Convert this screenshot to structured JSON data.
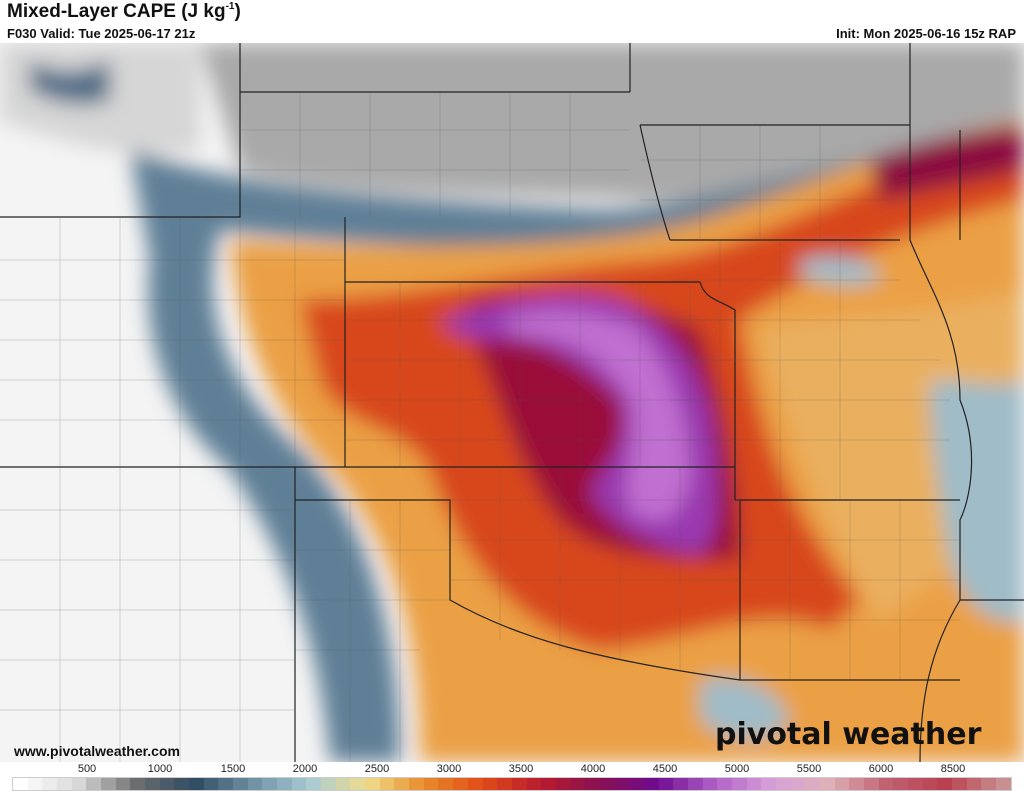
{
  "header": {
    "title": "Mixed-Layer CAPE (J kg",
    "title_sup": "-1",
    "title_close": ")",
    "valid": "F030 Valid: Tue 2025-06-17 21z",
    "init": "Init: Mon 2025-06-16 15z RAP"
  },
  "footer": {
    "url": "www.pivotalweather.com",
    "logo": "pivotal weather"
  },
  "colorbar": {
    "ticks": [
      "500",
      "1000",
      "1500",
      "2000",
      "2500",
      "3000",
      "3500",
      "4000",
      "4500",
      "5000",
      "5500",
      "6000",
      "8500"
    ],
    "stops": [
      "#ffffff",
      "#d9d9d9",
      "#6e6e6e",
      "#2f4a63",
      "#6f8fa3",
      "#a8cbd4",
      "#f0dc8c",
      "#e88a2a",
      "#e04a18",
      "#b81c30",
      "#8a1050",
      "#6e0a90",
      "#b060c8",
      "#d8a0d8",
      "#e0b0b8",
      "#c06070",
      "#b84050",
      "#c89090"
    ]
  }
}
